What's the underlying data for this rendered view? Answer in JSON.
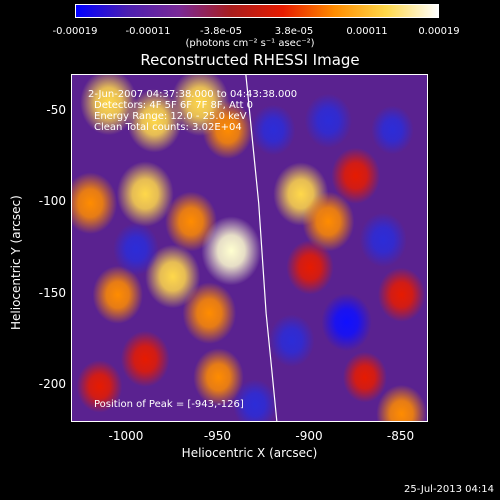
{
  "colorbar": {
    "ticks": [
      "-0.00019",
      "-0.00011",
      "-3.8e-05",
      "3.8e-05",
      "0.00011",
      "0.00019"
    ],
    "units": "(photons cm⁻² s⁻¹ asec⁻²)",
    "colors": [
      "#0000ff",
      "#4b1fb0",
      "#7a2a96",
      "#a81d1d",
      "#e61b00",
      "#ff8c00",
      "#ffd84a",
      "#ffffff"
    ]
  },
  "chart_data": {
    "type": "heatmap",
    "title": "Reconstructed RHESSI Image",
    "xlabel": "Heliocentric X (arcsec)",
    "ylabel": "Heliocentric Y (arcsec)",
    "xlim": [
      -1030,
      -835
    ],
    "ylim": [
      -220,
      -30
    ],
    "x_ticks": [
      "-1000",
      "-950",
      "-900",
      "-850"
    ],
    "x_tick_values": [
      -1000,
      -950,
      -900,
      -850
    ],
    "y_ticks": [
      "-50",
      "-100",
      "-150",
      "-200"
    ],
    "y_tick_values": [
      -50,
      -100,
      -150,
      -200
    ],
    "limb_curve": [
      [
        -935,
        -30
      ],
      [
        -932,
        -60
      ],
      [
        -928,
        -100
      ],
      [
        -926,
        -130
      ],
      [
        -924,
        -160
      ],
      [
        -921,
        -190
      ],
      [
        -918,
        -220
      ]
    ],
    "peak": [
      -943,
      -126
    ],
    "annotations": {
      "time": "2-Jun-2007 04:37:38.000 to 04:43:38.000",
      "detectors": "Detectors: 4F 5F 6F 7F 8F, Att 0",
      "energy": "Energy Range: 12.0 - 25.0 keV",
      "clean": "Clean     Total counts: 3.02E+04",
      "peak_label": "Position of Peak = [-943,-126]"
    },
    "blobs": [
      {
        "x": -1010,
        "y": -45,
        "v": 0.9
      },
      {
        "x": -985,
        "y": -55,
        "v": 0.85
      },
      {
        "x": -960,
        "y": -45,
        "v": 0.95
      },
      {
        "x": -945,
        "y": -60,
        "v": 0.7
      },
      {
        "x": -1020,
        "y": -100,
        "v": 0.8
      },
      {
        "x": -990,
        "y": -95,
        "v": 0.9
      },
      {
        "x": -965,
        "y": -110,
        "v": 0.75
      },
      {
        "x": -943,
        "y": -126,
        "v": 1.0
      },
      {
        "x": -975,
        "y": -140,
        "v": 0.85
      },
      {
        "x": -1005,
        "y": -150,
        "v": 0.7
      },
      {
        "x": -955,
        "y": -160,
        "v": 0.8
      },
      {
        "x": -990,
        "y": -185,
        "v": 0.65
      },
      {
        "x": -950,
        "y": -195,
        "v": 0.7
      },
      {
        "x": -1015,
        "y": -200,
        "v": 0.55
      },
      {
        "x": -905,
        "y": -95,
        "v": 0.85
      },
      {
        "x": -890,
        "y": -110,
        "v": 0.75
      },
      {
        "x": -875,
        "y": -85,
        "v": 0.65
      },
      {
        "x": -900,
        "y": -135,
        "v": 0.6
      },
      {
        "x": -850,
        "y": -150,
        "v": 0.6
      },
      {
        "x": -870,
        "y": -195,
        "v": 0.5
      },
      {
        "x": -850,
        "y": -215,
        "v": 0.7
      },
      {
        "x": -920,
        "y": -60,
        "v": -0.5
      },
      {
        "x": -890,
        "y": -55,
        "v": -0.6
      },
      {
        "x": -860,
        "y": -120,
        "v": -0.6
      },
      {
        "x": -880,
        "y": -165,
        "v": -0.7
      },
      {
        "x": -910,
        "y": -175,
        "v": -0.55
      },
      {
        "x": -995,
        "y": -125,
        "v": -0.55
      },
      {
        "x": -930,
        "y": -210,
        "v": -0.5
      },
      {
        "x": -855,
        "y": -60,
        "v": -0.45
      }
    ]
  },
  "footer": "25-Jul-2013 04:14"
}
